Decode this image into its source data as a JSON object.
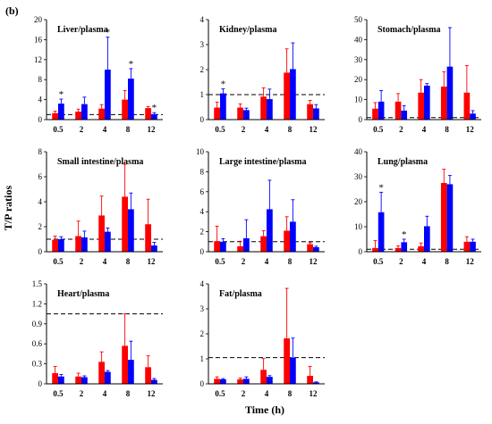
{
  "figure": {
    "panel_label": "(b)",
    "ylabel": "T/P ratios",
    "xlabel": "Time (h)"
  },
  "colors": {
    "series_a": "#ff0000",
    "series_b": "#0000ff"
  },
  "chart_data": [
    {
      "type": "bar",
      "title": "Liver/plasma",
      "categories": [
        "0.5",
        "2",
        "4",
        "8",
        "12"
      ],
      "ylim": [
        0,
        20
      ],
      "yticks": [
        "0",
        "4",
        "8",
        "12",
        "16",
        "20"
      ],
      "reference_line": 1,
      "series": [
        {
          "values": [
            1.3,
            1.6,
            2.2,
            4.0,
            2.3
          ],
          "errors": [
            0.4,
            0.5,
            0.8,
            1.8,
            0.3
          ]
        },
        {
          "values": [
            3.2,
            3.1,
            10.0,
            8.2,
            1.1
          ],
          "errors": [
            0.9,
            1.4,
            6.5,
            2.0,
            0.3
          ]
        }
      ],
      "asterisks": [
        {
          "category": 0,
          "series": 1
        },
        {
          "category": 2,
          "series": 1
        },
        {
          "category": 3,
          "series": 1
        },
        {
          "category": 4,
          "series": 1
        }
      ]
    },
    {
      "type": "bar",
      "title": "Kidney/plasma",
      "categories": [
        "0.5",
        "2",
        "4",
        "8",
        "12"
      ],
      "ylim": [
        0,
        4
      ],
      "yticks": [
        "0",
        "1",
        "2",
        "3",
        "4"
      ],
      "reference_line": 1,
      "series": [
        {
          "values": [
            0.48,
            0.48,
            0.92,
            1.88,
            0.62
          ],
          "errors": [
            0.22,
            0.15,
            0.35,
            0.95,
            0.15
          ]
        },
        {
          "values": [
            1.05,
            0.38,
            0.82,
            2.02,
            0.45
          ],
          "errors": [
            0.18,
            0.08,
            0.4,
            1.05,
            0.15
          ]
        }
      ],
      "asterisks": [
        {
          "category": 0,
          "series": 1
        }
      ]
    },
    {
      "type": "bar",
      "title": "Stomach/plasma",
      "categories": [
        "0.5",
        "2",
        "4",
        "8",
        "12"
      ],
      "ylim": [
        0,
        50
      ],
      "yticks": [
        "0",
        "10",
        "20",
        "30",
        "40",
        "50"
      ],
      "reference_line": 1,
      "series": [
        {
          "values": [
            5.5,
            9.0,
            13.5,
            16.5,
            13.5
          ],
          "errors": [
            3.0,
            4.0,
            6.5,
            7.5,
            13.5
          ]
        },
        {
          "values": [
            9.0,
            4.5,
            17.0,
            26.5,
            3.0
          ],
          "errors": [
            5.5,
            2.5,
            1.0,
            19.5,
            1.5
          ]
        }
      ],
      "asterisks": []
    },
    {
      "type": "bar",
      "title": "Small intestine/plasma",
      "categories": [
        "0.5",
        "2",
        "4",
        "8",
        "12"
      ],
      "ylim": [
        0,
        8
      ],
      "yticks": [
        "0",
        "2",
        "4",
        "6",
        "8"
      ],
      "reference_line": 1,
      "series": [
        {
          "values": [
            0.95,
            1.25,
            2.9,
            4.4,
            2.2
          ],
          "errors": [
            0.3,
            1.2,
            1.55,
            2.6,
            2.0
          ]
        },
        {
          "values": [
            1.0,
            1.15,
            1.6,
            3.4,
            0.5
          ],
          "errors": [
            0.2,
            0.5,
            0.3,
            1.3,
            0.25
          ]
        }
      ],
      "asterisks": []
    },
    {
      "type": "bar",
      "title": "Large intestine/plasma",
      "categories": [
        "0.5",
        "2",
        "4",
        "8",
        "12"
      ],
      "ylim": [
        0,
        10
      ],
      "yticks": [
        "0",
        "2",
        "4",
        "6",
        "8",
        "10"
      ],
      "reference_line": 1,
      "series": [
        {
          "values": [
            1.05,
            0.55,
            1.55,
            2.1,
            0.75
          ],
          "errors": [
            1.5,
            0.5,
            0.55,
            1.4,
            0.15
          ]
        },
        {
          "values": [
            1.0,
            1.35,
            4.25,
            3.0,
            0.45
          ],
          "errors": [
            0.3,
            1.85,
            2.9,
            2.2,
            0.1
          ]
        }
      ],
      "asterisks": []
    },
    {
      "type": "bar",
      "title": "Lung/plasma",
      "categories": [
        "0.5",
        "2",
        "4",
        "8",
        "12"
      ],
      "ylim": [
        0,
        40
      ],
      "yticks": [
        "0",
        "10",
        "20",
        "30",
        "40"
      ],
      "reference_line": 1,
      "series": [
        {
          "values": [
            1.5,
            1.5,
            2.2,
            27.5,
            4.0
          ],
          "errors": [
            3.0,
            0.8,
            1.3,
            5.5,
            2.0
          ]
        },
        {
          "values": [
            15.8,
            3.8,
            10.2,
            27.0,
            4.0
          ],
          "errors": [
            8.0,
            1.2,
            4.0,
            3.5,
            1.0
          ]
        }
      ],
      "asterisks": [
        {
          "category": 0,
          "series": 1
        },
        {
          "category": 1,
          "series": 1
        }
      ]
    },
    {
      "type": "bar",
      "title": "Heart/plasma",
      "categories": [
        "0.5",
        "2",
        "4",
        "8",
        "12"
      ],
      "ylim": [
        0,
        1.5
      ],
      "yticks": [
        "0",
        "0.3",
        "0.6",
        "0.9",
        "1.2",
        "1.5"
      ],
      "reference_line": 1.05,
      "series": [
        {
          "values": [
            0.16,
            0.11,
            0.33,
            0.57,
            0.25
          ],
          "errors": [
            0.1,
            0.05,
            0.15,
            0.48,
            0.17
          ]
        },
        {
          "values": [
            0.11,
            0.1,
            0.18,
            0.36,
            0.06
          ],
          "errors": [
            0.03,
            0.02,
            0.02,
            0.28,
            0.02
          ]
        }
      ],
      "asterisks": []
    },
    {
      "type": "bar",
      "title": "Fat/plasma",
      "categories": [
        "0.5",
        "2",
        "4",
        "8",
        "12"
      ],
      "ylim": [
        0,
        4
      ],
      "yticks": [
        "0",
        "1",
        "2",
        "3",
        "4"
      ],
      "reference_line": 1.05,
      "series": [
        {
          "values": [
            0.2,
            0.18,
            0.56,
            1.82,
            0.32
          ],
          "errors": [
            0.08,
            0.05,
            0.45,
            2.0,
            0.38
          ]
        },
        {
          "values": [
            0.18,
            0.2,
            0.28,
            1.05,
            0.06
          ],
          "errors": [
            0.03,
            0.08,
            0.05,
            0.78,
            0.02
          ]
        }
      ],
      "asterisks": []
    }
  ]
}
